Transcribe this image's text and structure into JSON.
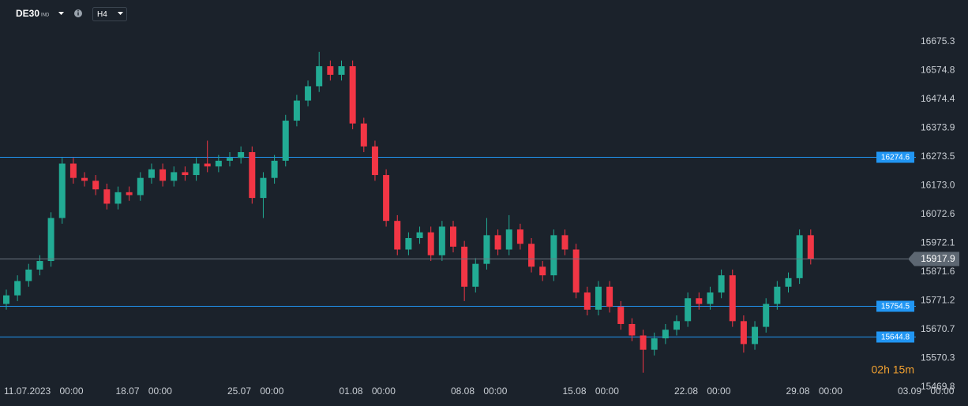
{
  "header": {
    "symbol": "DE30",
    "symbol_type": "IND",
    "timeframe": "H4"
  },
  "chart_data": {
    "type": "candlestick",
    "categories": [
      "11.07.2023 00:00",
      null,
      null,
      null,
      null,
      null,
      null,
      null,
      null,
      null,
      "18.07 00:00",
      null,
      null,
      null,
      null,
      null,
      null,
      null,
      null,
      null,
      "25.07 00:00",
      null,
      null,
      null,
      null,
      null,
      null,
      null,
      null,
      null,
      "01.08 00:00",
      null,
      null,
      null,
      null,
      null,
      null,
      null,
      null,
      null,
      "08.08 00:00",
      null,
      null,
      null,
      null,
      null,
      null,
      null,
      null,
      null,
      "15.08 00:00",
      null,
      null,
      null,
      null,
      null,
      null,
      null,
      null,
      null,
      "22.08 00:00",
      null,
      null,
      null,
      null,
      null,
      null,
      null,
      null,
      null,
      "29.08 00:00",
      null,
      null,
      null,
      null,
      null,
      null,
      null,
      null,
      null,
      "03.09 00:00"
    ],
    "open": [
      15760,
      15790,
      15840,
      15880,
      15910,
      16060,
      16250,
      16200,
      16190,
      16160,
      16110,
      16150,
      16140,
      16200,
      16230,
      16190,
      16220,
      16210,
      16250,
      16240,
      16260,
      16270,
      16290,
      16130,
      16200,
      16260,
      16400,
      16470,
      16520,
      16590,
      16560,
      16590,
      16390,
      16310,
      16210,
      16050,
      15950,
      15990,
      16010,
      15930,
      16030,
      15960,
      15820,
      15900,
      16000,
      15950,
      16020,
      15970,
      15890,
      15860,
      16000,
      15950,
      15800,
      15740,
      15820,
      15750,
      15690,
      15650,
      15600,
      15640,
      15670,
      15700,
      15780,
      15760,
      15800,
      15860,
      15700,
      15620,
      15680,
      15760,
      15820,
      15850,
      16000,
      null,
      null,
      null,
      null,
      null,
      null,
      null,
      null
    ],
    "high": [
      15810,
      15860,
      15900,
      15930,
      16080,
      16270,
      16270,
      16220,
      16210,
      16180,
      16170,
      16170,
      16220,
      16250,
      16250,
      16240,
      16240,
      16270,
      16330,
      16280,
      16290,
      16310,
      16310,
      16220,
      16280,
      16420,
      16490,
      16540,
      16640,
      16610,
      16610,
      16610,
      16410,
      16330,
      16230,
      16070,
      16010,
      16030,
      16030,
      16050,
      16050,
      15980,
      15920,
      16060,
      16020,
      16070,
      16040,
      15990,
      15910,
      16020,
      16020,
      15970,
      15820,
      15840,
      15840,
      15770,
      15710,
      15670,
      15660,
      15690,
      15720,
      15800,
      15800,
      15820,
      15880,
      15880,
      15720,
      15700,
      15780,
      15840,
      15870,
      16020,
      16020,
      null,
      null,
      null,
      null,
      null,
      null,
      null,
      null
    ],
    "low": [
      15740,
      15770,
      15820,
      15860,
      15890,
      16040,
      16180,
      16170,
      16140,
      16090,
      16090,
      16120,
      16120,
      16180,
      16170,
      16170,
      16190,
      16190,
      16220,
      16220,
      16240,
      16250,
      16110,
      16060,
      16180,
      16240,
      16380,
      16450,
      16500,
      16540,
      16540,
      16370,
      16290,
      16190,
      16030,
      15930,
      15930,
      15970,
      15910,
      15910,
      15940,
      15770,
      15800,
      15880,
      15930,
      15930,
      15950,
      15870,
      15840,
      15840,
      15930,
      15780,
      15720,
      15720,
      15730,
      15670,
      15630,
      15520,
      15580,
      15620,
      15650,
      15680,
      15740,
      15740,
      15780,
      15680,
      15590,
      15600,
      15660,
      15740,
      15800,
      15830,
      15897.9,
      null,
      null,
      null,
      null,
      null,
      null,
      null,
      null
    ],
    "close": [
      15790,
      15840,
      15880,
      15910,
      16060,
      16250,
      16200,
      16190,
      16160,
      16110,
      16150,
      16140,
      16200,
      16230,
      16190,
      16220,
      16210,
      16250,
      16240,
      16260,
      16270,
      16290,
      16130,
      16200,
      16260,
      16400,
      16470,
      16520,
      16590,
      16560,
      16590,
      16390,
      16310,
      16210,
      16050,
      15950,
      15990,
      16010,
      15930,
      16030,
      15960,
      15820,
      15900,
      16000,
      15950,
      16020,
      15970,
      15890,
      15860,
      16000,
      15950,
      15800,
      15740,
      15820,
      15750,
      15690,
      15650,
      15600,
      15640,
      15670,
      15700,
      15780,
      15760,
      15800,
      15860,
      15700,
      15620,
      15680,
      15760,
      15820,
      15850,
      16000,
      15917.9,
      null,
      null,
      null,
      null,
      null,
      null,
      null,
      null
    ],
    "up_color": "#22ab94",
    "down_color": "#f23645",
    "ylim": [
      15431.2,
      16766.1
    ],
    "yticks": [
      15469.8,
      15570.3,
      15670.7,
      15771.2,
      15871.6,
      15972.1,
      16072.6,
      {
        "value": 16173,
        "label": "16173.0"
      },
      16273.5,
      16373.9,
      16474.4,
      16574.8,
      16675.3
    ],
    "grid": false,
    "levels": [
      16274.6,
      15754.5,
      15644.8
    ],
    "level_color": "#2196f3",
    "countdown": "02h 15m"
  }
}
